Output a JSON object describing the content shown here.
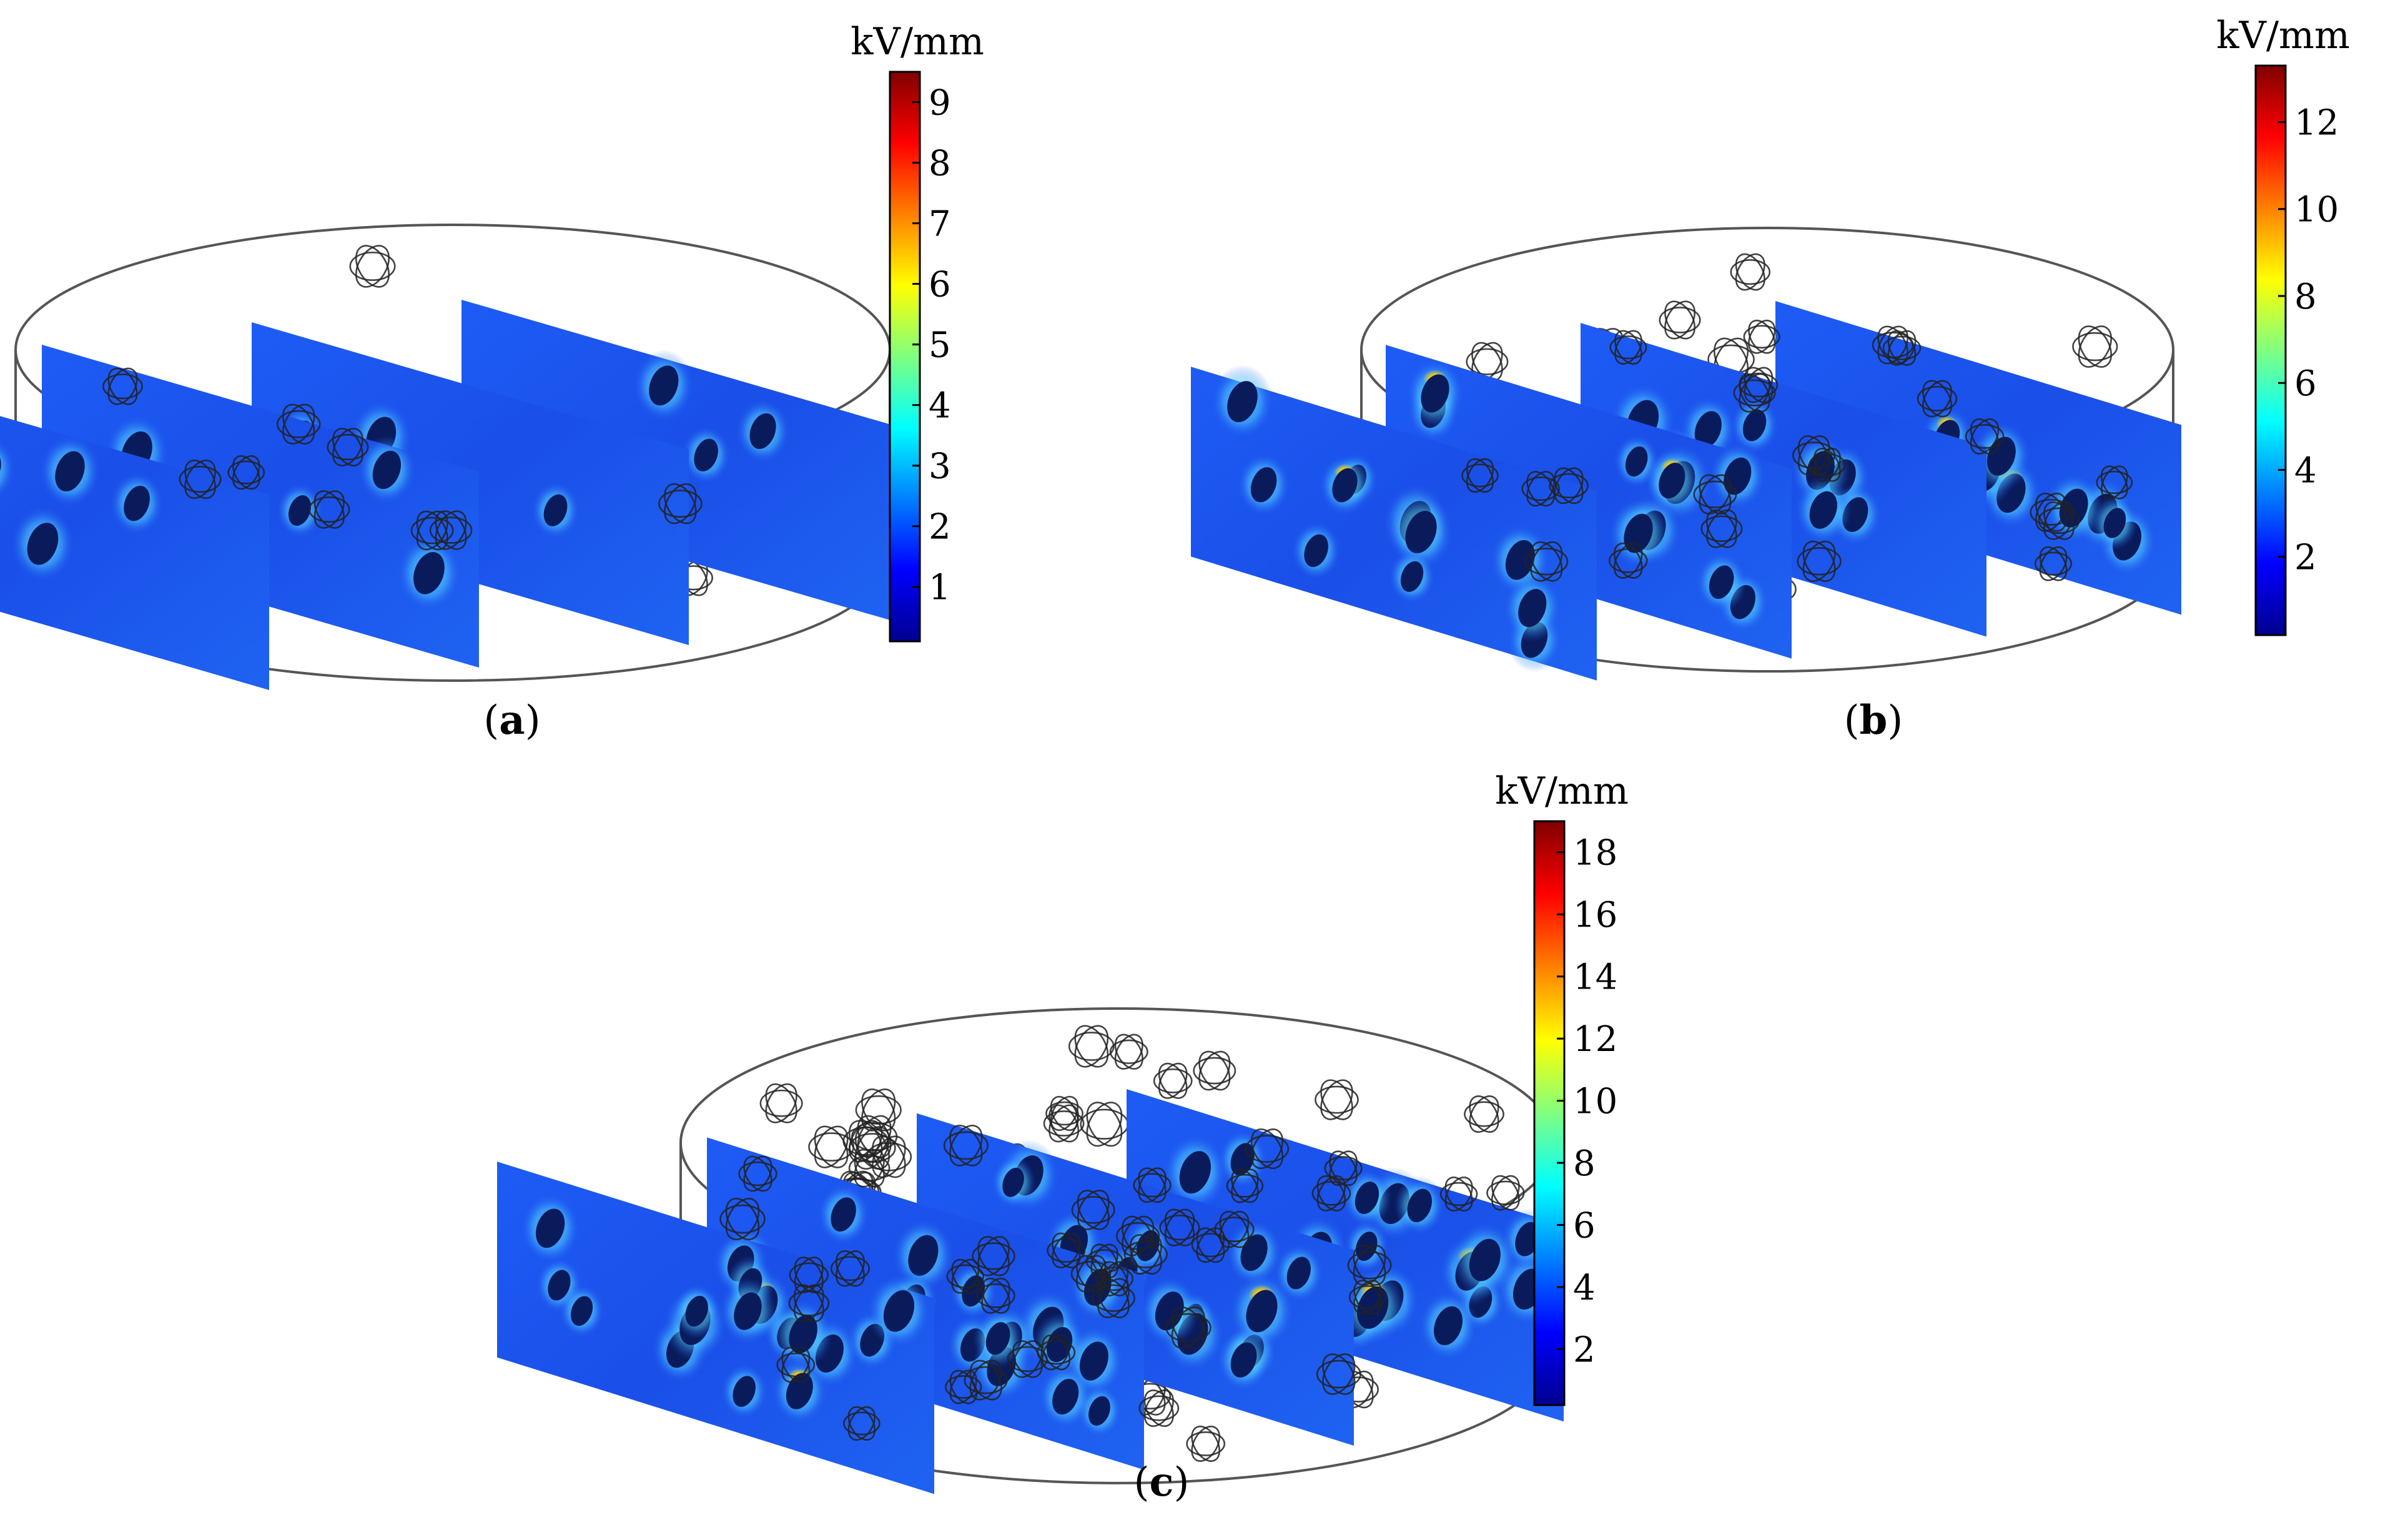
{
  "panels": [
    {
      "id": "a",
      "caption_letter": "a",
      "colorbar": {
        "unit": "kV/mm",
        "min": 0.1,
        "max": 9.5,
        "ticks": [
          1,
          2,
          3,
          4,
          5,
          6,
          7,
          8,
          9
        ]
      },
      "cross_sections": 4,
      "particle_count": "sparse",
      "peak_field_kv_per_mm": 9.5
    },
    {
      "id": "b",
      "caption_letter": "b",
      "colorbar": {
        "unit": "kV/mm",
        "min": 0.2,
        "max": 13.3,
        "ticks": [
          2,
          4,
          6,
          8,
          10,
          12
        ]
      },
      "cross_sections": 4,
      "particle_count": "medium",
      "peak_field_kv_per_mm": 13.3
    },
    {
      "id": "c",
      "caption_letter": "c",
      "colorbar": {
        "unit": "kV/mm",
        "min": 0.2,
        "max": 19.0,
        "ticks": [
          2,
          4,
          6,
          8,
          10,
          12,
          14,
          16,
          18
        ]
      },
      "cross_sections": 4,
      "particle_count": "dense",
      "peak_field_kv_per_mm": 19.0
    }
  ],
  "colors": {
    "slice_base": "#1a52f0",
    "particle_core": "#0a1b5c",
    "outline": "#333333",
    "colormap": [
      "#00008f",
      "#0000ff",
      "#0080ff",
      "#00ffff",
      "#80ff80",
      "#ffff00",
      "#ff8000",
      "#ff0000",
      "#800000"
    ]
  }
}
